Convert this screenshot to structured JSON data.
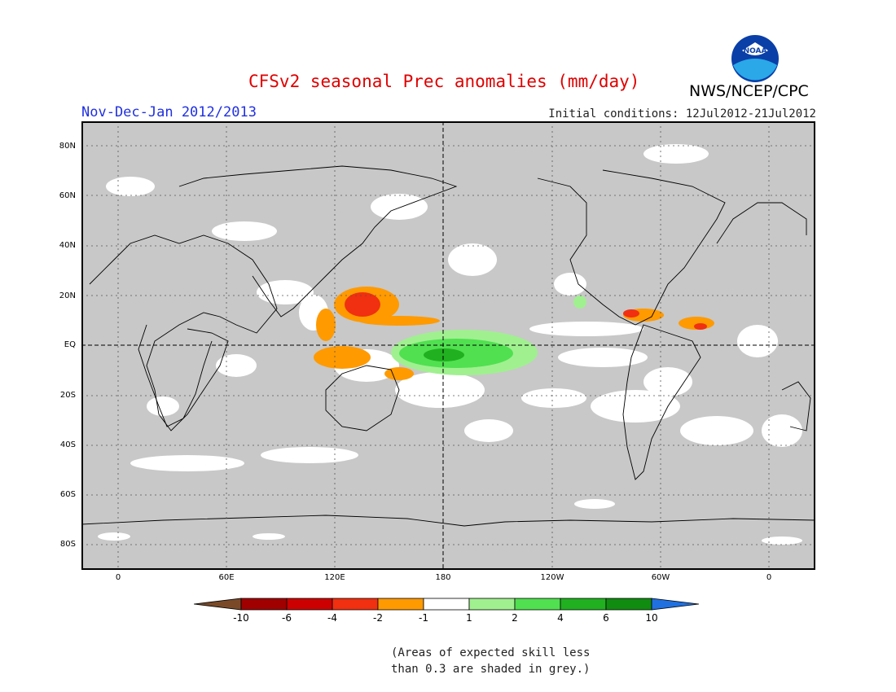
{
  "title": "CFSv2 seasonal Prec anomalies (mm/day)",
  "period": "Nov-Dec-Jan 2012/2013",
  "initial_conditions": "Initial conditions: 12Jul2012-21Jul2012",
  "agency": "NWS/NCEP/CPC",
  "logo_text": "NOAA",
  "lat_labels": [
    "80N",
    "60N",
    "40N",
    "20N",
    "EQ",
    "20S",
    "40S",
    "60S",
    "80S"
  ],
  "lon_labels": [
    "0",
    "60E",
    "120E",
    "180",
    "120W",
    "60W",
    "0"
  ],
  "colorbar": {
    "labels": [
      "-10",
      "-6",
      "-4",
      "-2",
      "-1",
      "1",
      "2",
      "4",
      "6",
      "10"
    ],
    "colors": [
      "#7a4a28",
      "#a00000",
      "#cc0000",
      "#f03010",
      "#ff9a00",
      "#ffffff",
      "#a0f090",
      "#50e050",
      "#20b020",
      "#108c10",
      "#2070e0"
    ]
  },
  "note_line1": "(Areas of expected skill less",
  "note_line2": "than 0.3 are shaded in grey.)",
  "colors": {
    "grey_mask": "#c8c8c8",
    "title": "#e00000",
    "period": "#2030e0"
  }
}
